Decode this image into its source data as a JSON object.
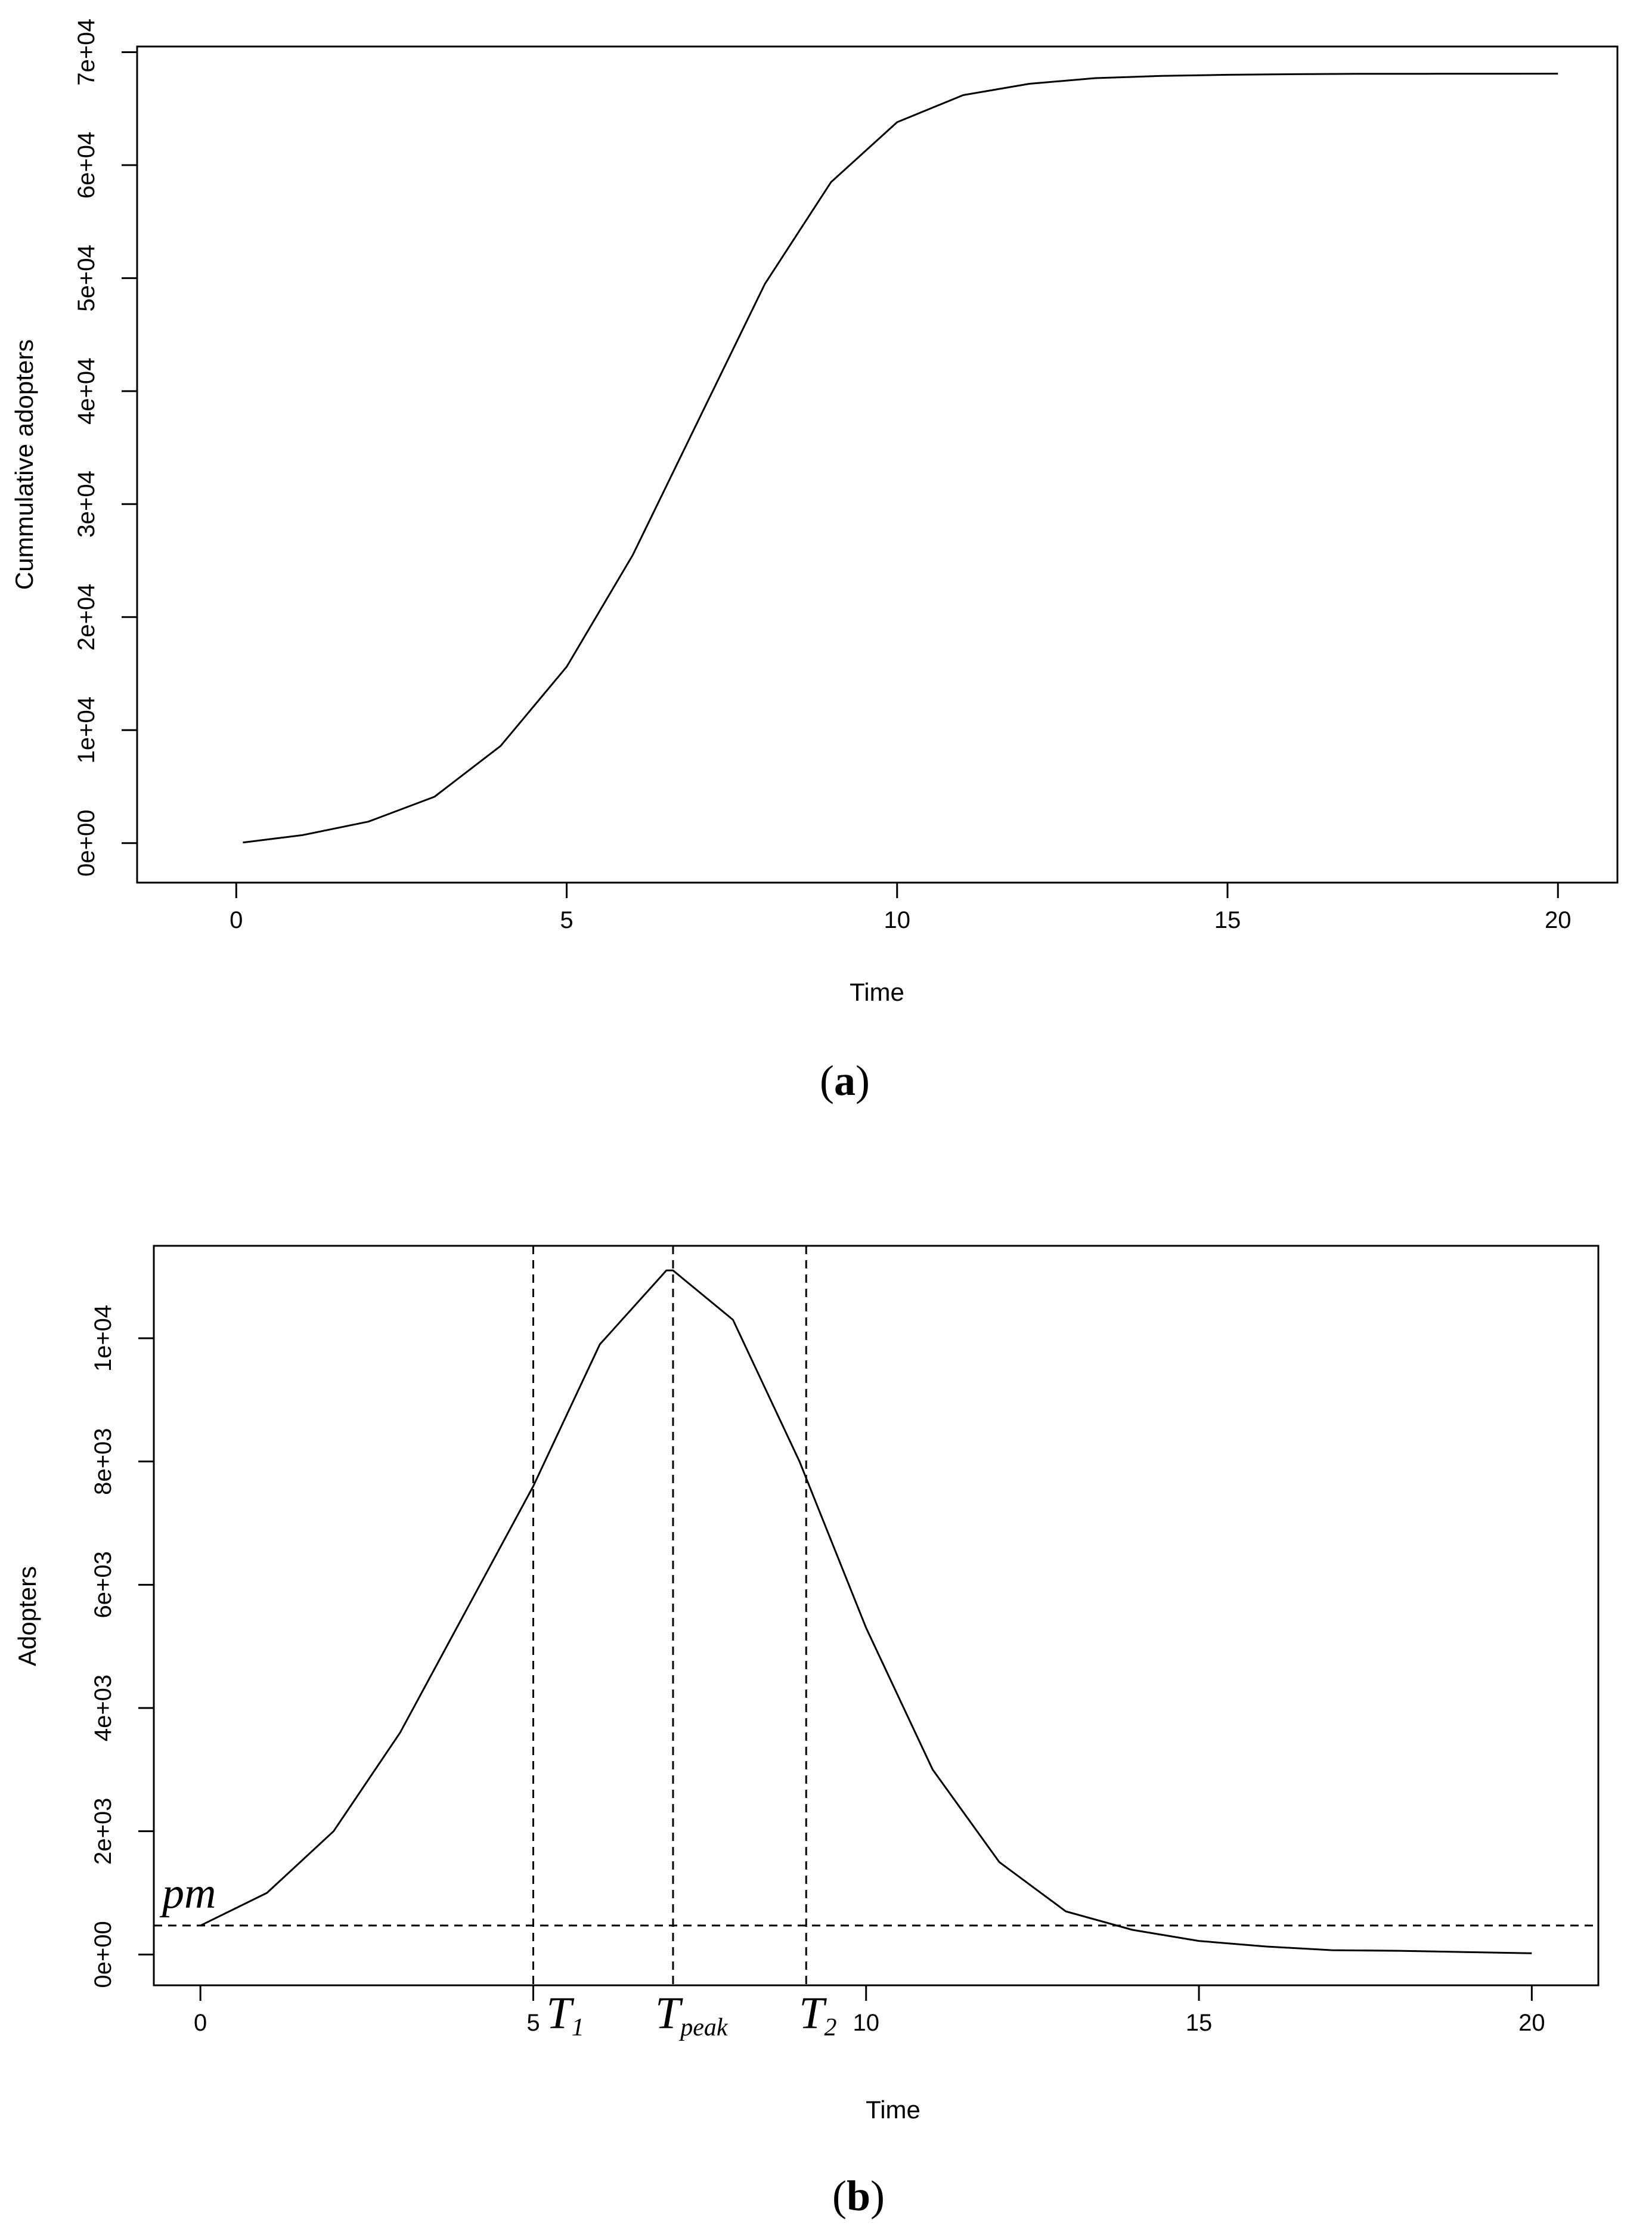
{
  "chart_data": [
    {
      "type": "line",
      "panel": "a",
      "caption_open": "(",
      "caption_letter": "a",
      "caption_close": ")",
      "xlabel": "Time",
      "ylabel": "Cummulative adopters",
      "xlim": [
        -1.5,
        20.9
      ],
      "ylim": [
        -3500,
        70500
      ],
      "xticks": [
        0,
        5,
        10,
        15,
        20
      ],
      "xtick_labels": [
        "0",
        "5",
        "10",
        "15",
        "20"
      ],
      "yticks": [
        0,
        10000,
        20000,
        30000,
        40000,
        50000,
        60000,
        70000
      ],
      "ytick_labels": [
        "0e+00",
        "1e+04",
        "2e+04",
        "3e+04",
        "4e+04",
        "5e+04",
        "6e+04",
        "7e+04"
      ],
      "series": [
        {
          "x": [
            0.1,
            1,
            2,
            3,
            4,
            5,
            6,
            7,
            8,
            9,
            10,
            11,
            12,
            13,
            14,
            15,
            16,
            17,
            18,
            19,
            20
          ],
          "y": [
            50,
            700,
            1900,
            4100,
            8600,
            15600,
            25500,
            37500,
            49500,
            58500,
            63800,
            66200,
            67200,
            67700,
            67900,
            68000,
            68050,
            68080,
            68090,
            68095,
            68100
          ]
        }
      ]
    },
    {
      "type": "line",
      "panel": "b",
      "caption_open": "(",
      "caption_letter": "b",
      "caption_close": ")",
      "xlabel": "Time",
      "ylabel": "Adopters",
      "xlim": [
        -0.7,
        21.0
      ],
      "ylim": [
        -500,
        11500
      ],
      "xticks": [
        0,
        5,
        10,
        15,
        20
      ],
      "xtick_labels": [
        "0",
        "5",
        "10",
        "15",
        "20"
      ],
      "yticks": [
        0,
        2000,
        4000,
        6000,
        8000,
        10000
      ],
      "ytick_labels": [
        "0e+00",
        "2e+03",
        "4e+03",
        "6e+03",
        "8e+03",
        "1e+04"
      ],
      "series": [
        {
          "x": [
            0,
            1,
            2,
            3,
            4,
            5,
            6,
            7,
            7.1,
            8,
            9,
            10,
            11,
            12,
            13,
            14,
            15,
            16,
            17,
            18,
            19,
            20
          ],
          "y": [
            470,
            1000,
            2000,
            3600,
            5600,
            7600,
            9900,
            11100,
            11100,
            10300,
            8000,
            5300,
            3000,
            1500,
            700,
            400,
            220,
            130,
            70,
            60,
            40,
            20
          ]
        }
      ],
      "reference_lines": {
        "vertical": [
          {
            "x": 5.0,
            "label_main": "T",
            "label_sub": "1"
          },
          {
            "x": 7.1,
            "label_main": "T",
            "label_sub": "peak"
          },
          {
            "x": 9.1,
            "label_main": "T",
            "label_sub": "2"
          }
        ],
        "horizontal": [
          {
            "y": 470,
            "label": "pm"
          }
        ]
      }
    }
  ]
}
